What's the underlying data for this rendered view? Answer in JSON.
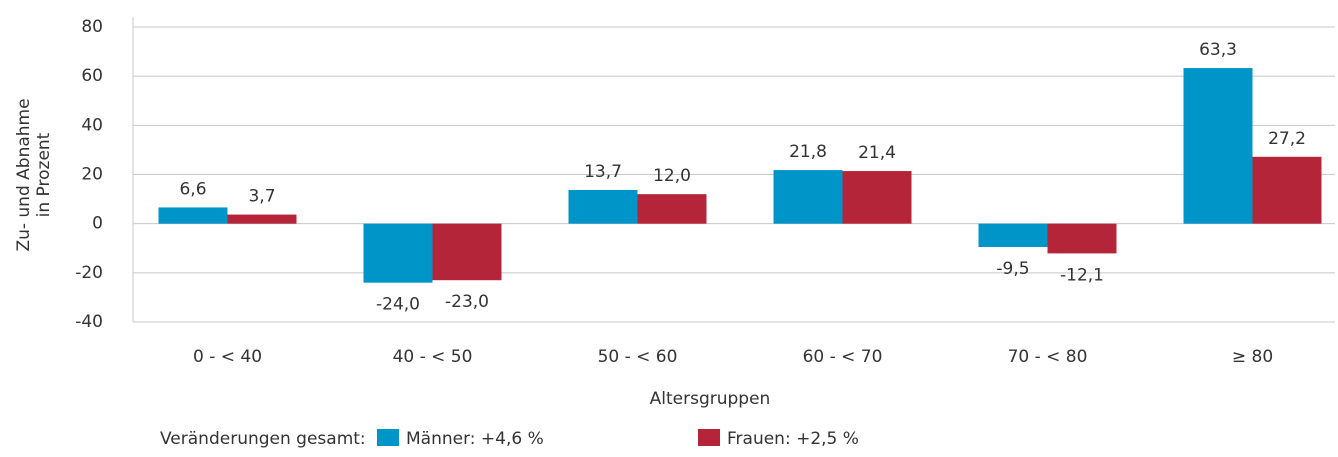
{
  "chart_data": {
    "type": "bar",
    "x_label": "Altersgruppen",
    "y_label": [
      "Zu- und Abnahme",
      "in Prozent"
    ],
    "legend_title": "Veränderungen gesamt:",
    "categories": [
      "0 - < 40",
      "40 - < 50",
      "50 - < 60",
      "60 - < 70",
      "70 - < 80",
      "≥ 80"
    ],
    "series": [
      {
        "name": "Männer: +4,6 %",
        "color": "#0095c8",
        "values": [
          6.6,
          -24.0,
          13.7,
          21.8,
          -9.5,
          63.3
        ],
        "value_labels": [
          "6,6",
          "-24,0",
          "13,7",
          "21,8",
          "-9,5",
          "63,3"
        ]
      },
      {
        "name": "Frauen: +2,5 %",
        "color": "#b5253a",
        "values": [
          3.7,
          -23.0,
          12.0,
          21.4,
          -12.1,
          27.2
        ],
        "value_labels": [
          "3,7",
          "-23,0",
          "12,0",
          "21,4",
          "-12,1",
          "27,2"
        ]
      }
    ],
    "ylim": [
      -40,
      80
    ],
    "yticks": [
      -40,
      -20,
      0,
      20,
      40,
      60,
      80
    ],
    "grid": true,
    "legend": "bottom"
  }
}
